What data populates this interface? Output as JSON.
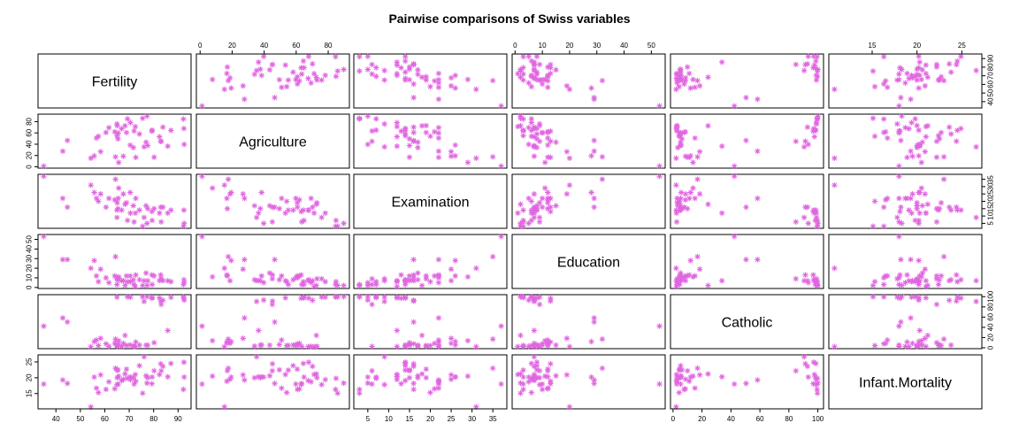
{
  "chart_data": {
    "type": "scatter",
    "matrix": "pairs",
    "title": "Pairwise comparisons of Swiss variables",
    "point_symbol": "asterisk",
    "point_color": "#e066e0",
    "variables": [
      {
        "name": "Fertility",
        "range": [
          35,
          93
        ],
        "ticks": [
          40,
          50,
          60,
          70,
          80,
          90
        ],
        "tick_labels": [
          "40",
          "50",
          "60",
          "70",
          "80",
          "90"
        ]
      },
      {
        "name": "Agriculture",
        "range": [
          1.2,
          89.7
        ],
        "ticks": [
          0,
          20,
          40,
          60,
          80
        ],
        "tick_labels": [
          "0",
          "20",
          "40",
          "60",
          "80"
        ]
      },
      {
        "name": "Examination",
        "range": [
          3,
          37
        ],
        "ticks": [
          5,
          10,
          15,
          20,
          25,
          30,
          35
        ],
        "tick_labels": [
          "5",
          "10",
          "15",
          "20",
          "25",
          "30",
          "35"
        ]
      },
      {
        "name": "Education",
        "range": [
          1,
          53
        ],
        "ticks": [
          0,
          10,
          20,
          30,
          40,
          50
        ],
        "tick_labels": [
          "0",
          "10",
          "20",
          "30",
          "40",
          "50"
        ]
      },
      {
        "name": "Catholic",
        "range": [
          2.15,
          100
        ],
        "ticks": [
          0,
          20,
          40,
          60,
          80,
          100
        ],
        "tick_labels": [
          "0",
          "20",
          "40",
          "60",
          "80",
          "100"
        ]
      },
      {
        "name": "Infant.Mortality",
        "range": [
          10.8,
          26.6
        ],
        "ticks": [
          15,
          20,
          25
        ],
        "tick_labels": [
          "15",
          "20",
          "25"
        ]
      }
    ],
    "observations": [
      [
        80.2,
        17.0,
        15,
        12,
        9.96,
        22.2
      ],
      [
        83.1,
        45.1,
        6,
        9,
        84.84,
        22.2
      ],
      [
        92.5,
        39.7,
        5,
        5,
        93.4,
        20.2
      ],
      [
        85.8,
        36.5,
        12,
        7,
        33.77,
        20.3
      ],
      [
        76.9,
        43.5,
        17,
        15,
        5.16,
        20.6
      ],
      [
        76.1,
        35.3,
        9,
        7,
        90.57,
        26.6
      ],
      [
        83.8,
        70.2,
        16,
        7,
        92.85,
        23.6
      ],
      [
        92.4,
        67.8,
        14,
        8,
        97.16,
        24.9
      ],
      [
        82.4,
        53.3,
        12,
        7,
        97.67,
        21.0
      ],
      [
        82.9,
        45.2,
        16,
        13,
        91.38,
        24.4
      ],
      [
        87.1,
        64.5,
        14,
        6,
        98.61,
        24.5
      ],
      [
        64.1,
        62.0,
        21,
        12,
        8.52,
        16.5
      ],
      [
        66.9,
        67.5,
        14,
        7,
        2.27,
        19.1
      ],
      [
        68.9,
        60.7,
        19,
        12,
        4.43,
        22.7
      ],
      [
        61.7,
        69.3,
        22,
        5,
        2.82,
        18.7
      ],
      [
        68.3,
        72.6,
        18,
        2,
        24.2,
        21.2
      ],
      [
        71.7,
        34.0,
        17,
        8,
        3.3,
        20.0
      ],
      [
        55.7,
        19.4,
        26,
        28,
        12.11,
        20.2
      ],
      [
        54.3,
        15.2,
        31,
        20,
        2.15,
        10.8
      ],
      [
        65.1,
        73.0,
        19,
        9,
        2.84,
        20.0
      ],
      [
        65.5,
        59.8,
        22,
        10,
        5.23,
        18.0
      ],
      [
        65.0,
        55.1,
        14,
        3,
        4.52,
        22.4
      ],
      [
        56.6,
        50.9,
        22,
        12,
        15.14,
        16.7
      ],
      [
        57.4,
        54.1,
        20,
        6,
        4.2,
        15.3
      ],
      [
        72.5,
        71.2,
        12,
        1,
        2.4,
        21.0
      ],
      [
        74.2,
        58.1,
        14,
        8,
        5.23,
        23.8
      ],
      [
        72.0,
        63.5,
        6,
        3,
        2.56,
        18.0
      ],
      [
        60.5,
        60.8,
        16,
        10,
        7.72,
        16.3
      ],
      [
        58.3,
        26.8,
        25,
        19,
        18.46,
        20.9
      ],
      [
        65.4,
        49.5,
        15,
        8,
        6.1,
        22.5
      ],
      [
        75.5,
        85.9,
        3,
        2,
        99.71,
        15.1
      ],
      [
        69.3,
        84.9,
        7,
        6,
        99.68,
        19.8
      ],
      [
        77.3,
        89.7,
        5,
        2,
        100.0,
        18.3
      ],
      [
        70.5,
        78.2,
        12,
        6,
        98.96,
        19.4
      ],
      [
        79.4,
        64.9,
        7,
        3,
        98.22,
        20.2
      ],
      [
        65.0,
        75.9,
        9,
        9,
        99.06,
        17.8
      ],
      [
        92.2,
        84.6,
        3,
        3,
        99.46,
        16.3
      ],
      [
        79.3,
        63.1,
        13,
        13,
        96.83,
        18.1
      ],
      [
        70.4,
        38.4,
        26,
        12,
        5.62,
        20.3
      ],
      [
        65.7,
        7.7,
        29,
        11,
        13.79,
        20.5
      ],
      [
        72.7,
        16.7,
        22,
        13,
        11.22,
        18.9
      ],
      [
        64.4,
        17.6,
        35,
        32,
        16.92,
        23.0
      ],
      [
        77.6,
        37.6,
        15,
        7,
        4.97,
        20.0
      ],
      [
        67.6,
        18.7,
        25,
        7,
        8.65,
        19.5
      ],
      [
        35.0,
        1.2,
        37,
        53,
        42.34,
        18.0
      ],
      [
        44.7,
        46.6,
        16,
        29,
        50.43,
        18.2
      ],
      [
        42.8,
        27.7,
        22,
        29,
        58.33,
        19.3
      ]
    ]
  }
}
